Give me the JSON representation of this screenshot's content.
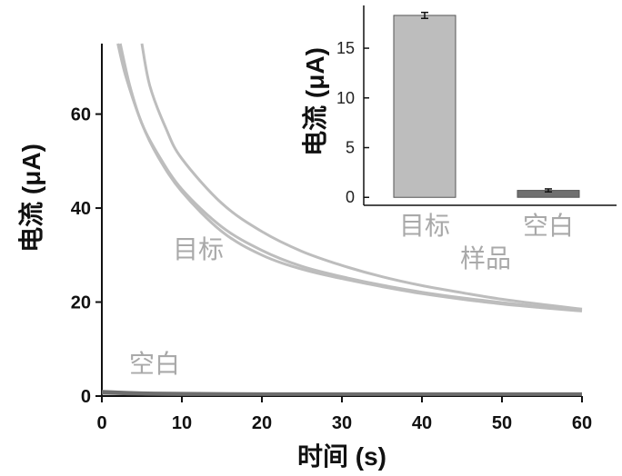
{
  "chart_data": [
    {
      "type": "line",
      "xlabel": "时间 (s)",
      "ylabel": "电流 (μA)",
      "xlim": [
        0,
        60
      ],
      "ylim": [
        0,
        75
      ],
      "x_ticks": [
        0,
        10,
        20,
        30,
        40,
        50,
        60
      ],
      "y_ticks": [
        0,
        20,
        40,
        60
      ],
      "grid": false,
      "annotations": [
        "目标",
        "样品",
        "空白"
      ],
      "series": [
        {
          "color": "#bdbdbd",
          "x": [
            2,
            3,
            5,
            7,
            10,
            15,
            20,
            25,
            30,
            35,
            40,
            45,
            50,
            55,
            60
          ],
          "y": [
            75,
            68,
            58,
            51,
            43.5,
            35,
            30,
            27,
            25,
            23.3,
            21.8,
            20.6,
            19.6,
            18.8,
            18.1
          ]
        },
        {
          "color": "#bdbdbd",
          "x": [
            2.3,
            3.5,
            5,
            7,
            10,
            15,
            20,
            25,
            30,
            35,
            40,
            45,
            50,
            55,
            60
          ],
          "y": [
            75,
            66,
            58,
            51.5,
            44,
            36,
            31,
            27.6,
            25.4,
            23.6,
            22.1,
            20.9,
            19.9,
            19,
            18.3
          ]
        },
        {
          "color": "#bdbdbd",
          "x": [
            5,
            6,
            8,
            10,
            15,
            20,
            25,
            30,
            35,
            40,
            45,
            50,
            55,
            60
          ],
          "y": [
            75,
            66,
            57,
            50.5,
            41,
            35,
            30.8,
            27.8,
            25.4,
            23.5,
            22,
            20.6,
            19.5,
            18.5
          ]
        },
        {
          "color": "#6e6e6e",
          "x": [
            0,
            5,
            10,
            20,
            30,
            40,
            50,
            60
          ],
          "y": [
            1,
            0.7,
            0.6,
            0.5,
            0.5,
            0.5,
            0.5,
            0.5
          ]
        },
        {
          "color": "#6e6e6e",
          "x": [
            0,
            5,
            10,
            20,
            30,
            40,
            50,
            60
          ],
          "y": [
            0.6,
            0.4,
            0.3,
            0.3,
            0.3,
            0.3,
            0.3,
            0.3
          ]
        }
      ]
    },
    {
      "type": "bar",
      "categories": [
        "目标",
        "空白"
      ],
      "values": [
        18.3,
        0.7
      ],
      "errors": [
        0.3,
        0.15
      ],
      "colors": [
        "#bdbdbd",
        "#707070"
      ],
      "ylabel": "电流 (μA)",
      "ylim": [
        -0.8,
        19.3
      ],
      "y_ticks": [
        0,
        5,
        10,
        15
      ],
      "grid": false
    }
  ]
}
